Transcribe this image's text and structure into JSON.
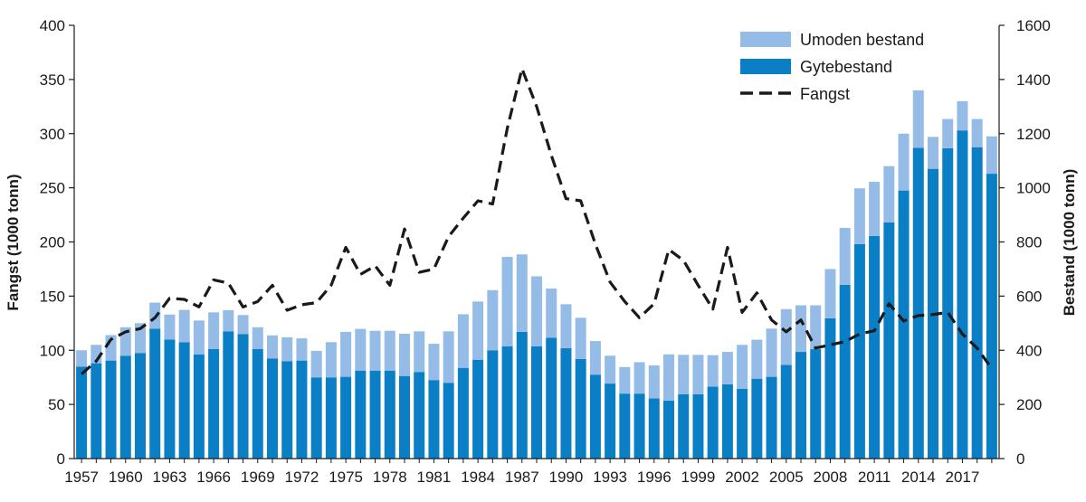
{
  "chart_data": {
    "type": "bar",
    "stacked": true,
    "title": "",
    "xlabel": "",
    "ylabel_left": "Fangst (1000 tonn)",
    "ylabel_right": "Bestand (1000 tonn)",
    "ylim_left": [
      0,
      400
    ],
    "ylim_right": [
      0,
      1600
    ],
    "yticks_left": [
      "0",
      "50",
      "100",
      "150",
      "200",
      "250",
      "300",
      "350",
      "400"
    ],
    "yticks_right": [
      "0",
      "200",
      "400",
      "600",
      "800",
      "1000",
      "1200",
      "1400",
      "1600"
    ],
    "x_tick_labels": [
      "1957",
      "1960",
      "1963",
      "1966",
      "1969",
      "1972",
      "1975",
      "1978",
      "1981",
      "1984",
      "1987",
      "1990",
      "1993",
      "1996",
      "1999",
      "2002",
      "2005",
      "2008",
      "2011",
      "2014",
      "2017"
    ],
    "legend_position": "top-right",
    "colors": {
      "umoden": "#94bce6",
      "gyte": "#0a7fc6",
      "fangst": "#1a1a1a"
    },
    "years": [
      1957,
      1958,
      1959,
      1960,
      1961,
      1962,
      1963,
      1964,
      1965,
      1966,
      1967,
      1968,
      1969,
      1970,
      1971,
      1972,
      1973,
      1974,
      1975,
      1976,
      1977,
      1978,
      1979,
      1980,
      1981,
      1982,
      1983,
      1984,
      1985,
      1986,
      1987,
      1988,
      1989,
      1990,
      1991,
      1992,
      1993,
      1994,
      1995,
      1996,
      1997,
      1998,
      1999,
      2000,
      2001,
      2002,
      2003,
      2004,
      2005,
      2006,
      2007,
      2008,
      2009,
      2010,
      2011,
      2012,
      2013,
      2014,
      2015,
      2016,
      2017,
      2018,
      2019
    ],
    "series": [
      {
        "name": "Gytebestand",
        "axis": "right",
        "kind": "bar",
        "values": [
          340,
          352,
          362,
          380,
          390,
          480,
          440,
          430,
          385,
          405,
          470,
          460,
          405,
          370,
          360,
          362,
          300,
          300,
          302,
          325,
          325,
          325,
          305,
          320,
          290,
          280,
          335,
          365,
          400,
          415,
          468,
          415,
          446,
          408,
          368,
          310,
          277,
          240,
          240,
          222,
          214,
          238,
          238,
          266,
          274,
          258,
          295,
          302,
          346,
          394,
          404,
          518,
          642,
          792,
          822,
          872,
          990,
          1148,
          1070,
          1146,
          1212,
          1150,
          1052
        ]
      },
      {
        "name": "Umoden bestand",
        "axis": "right",
        "kind": "bar",
        "values": [
          60,
          68,
          94,
          105,
          110,
          96,
          92,
          119,
          125,
          135,
          78,
          70,
          80,
          85,
          88,
          82,
          98,
          130,
          166,
          154,
          147,
          147,
          156,
          150,
          134,
          190,
          198,
          215,
          222,
          330,
          286,
          258,
          182,
          162,
          152,
          124,
          103,
          98,
          116,
          122,
          171,
          145,
          145,
          116,
          120,
          162,
          144,
          178,
          206,
          172,
          162,
          182,
          210,
          206,
          200,
          208,
          210,
          212,
          118,
          108,
          108,
          104,
          138
        ]
      },
      {
        "name": "Fangst",
        "axis": "left",
        "kind": "line",
        "values": [
          78,
          90,
          110,
          117,
          120,
          130,
          148,
          147,
          140,
          165,
          162,
          140,
          145,
          160,
          137,
          142,
          144,
          160,
          195,
          170,
          178,
          160,
          212,
          172,
          175,
          205,
          222,
          238,
          235,
          305,
          360,
          325,
          280,
          240,
          238,
          198,
          163,
          145,
          130,
          143,
          193,
          183,
          160,
          138,
          195,
          135,
          153,
          128,
          117,
          128,
          102,
          105,
          108,
          115,
          118,
          143,
          127,
          132,
          133,
          135,
          115,
          102,
          83
        ]
      }
    ]
  },
  "legend": {
    "items": [
      {
        "label": "Umoden bestand",
        "type": "bar",
        "color": "#94bce6"
      },
      {
        "label": "Gytebestand",
        "type": "bar",
        "color": "#0a7fc6"
      },
      {
        "label": "Fangst",
        "type": "dash",
        "color": "#1a1a1a"
      }
    ]
  }
}
